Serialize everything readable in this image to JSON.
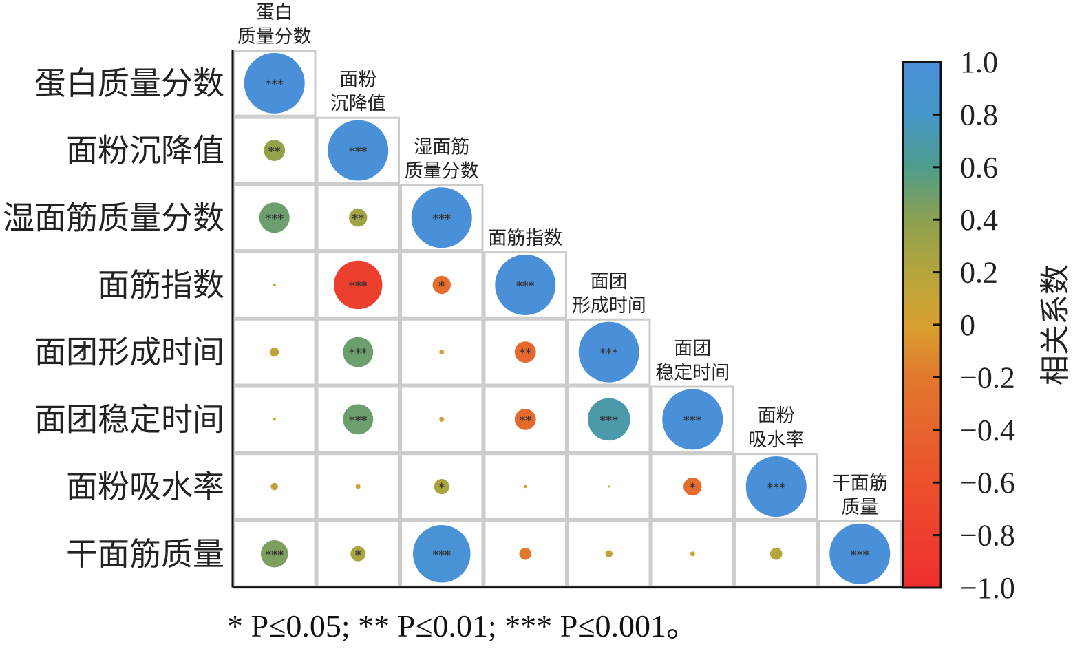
{
  "chart_data": {
    "type": "heatmap",
    "style": "lower-triangle correlation circles",
    "variables": [
      "蛋白质量分数",
      "面粉沉降值",
      "湿面筋质量分数",
      "面筋指数",
      "面团形成时间",
      "面团稳定时间",
      "面粉吸水率",
      "干面筋质量"
    ],
    "column_labels": [
      [
        "蛋白",
        "质量分数"
      ],
      [
        "面粉",
        "沉降值"
      ],
      [
        "湿面筋",
        "质量分数"
      ],
      [
        "面筋指数"
      ],
      [
        "面团",
        "形成时间"
      ],
      [
        "面团",
        "稳定时间"
      ],
      [
        "面粉",
        "吸水率"
      ],
      [
        "干面筋",
        "质量"
      ]
    ],
    "matrix": [
      [
        1.0
      ],
      [
        0.35,
        1.0
      ],
      [
        0.5,
        0.3,
        1.0
      ],
      [
        0.05,
        -0.8,
        -0.3,
        1.0
      ],
      [
        0.15,
        0.5,
        0.08,
        -0.35,
        1.0
      ],
      [
        0.05,
        0.5,
        0.08,
        -0.35,
        0.7,
        1.0
      ],
      [
        0.12,
        0.08,
        0.25,
        0.05,
        0.01,
        -0.3,
        1.0
      ],
      [
        0.45,
        0.25,
        0.95,
        -0.2,
        0.12,
        0.08,
        0.2,
        1.0
      ]
    ],
    "significance": [
      [
        "***"
      ],
      [
        "**",
        "***"
      ],
      [
        "***",
        "**",
        "***"
      ],
      [
        "",
        "***",
        "*",
        "***"
      ],
      [
        "",
        "***",
        "",
        "**",
        "***"
      ],
      [
        "",
        "***",
        "",
        "**",
        "***",
        "***"
      ],
      [
        "",
        "",
        "*",
        "",
        "",
        "*",
        "***"
      ],
      [
        "***",
        "*",
        "***",
        "",
        "",
        "",
        "",
        "***"
      ]
    ],
    "colorbar": {
      "title": "相关系数",
      "range": [
        -1.0,
        1.0
      ],
      "ticks": [
        "1.0",
        "0.8",
        "0.6",
        "0.4",
        "0.2",
        "0",
        "−0.2",
        "−0.4",
        "−0.6",
        "−0.8",
        "−1.0"
      ],
      "colors": {
        "high": "#4a90d9",
        "mid": "#d9a030",
        "low": "#ee2e2e"
      }
    },
    "footnote": "* P≤0.05; ** P≤0.01; *** P≤0.001。"
  }
}
